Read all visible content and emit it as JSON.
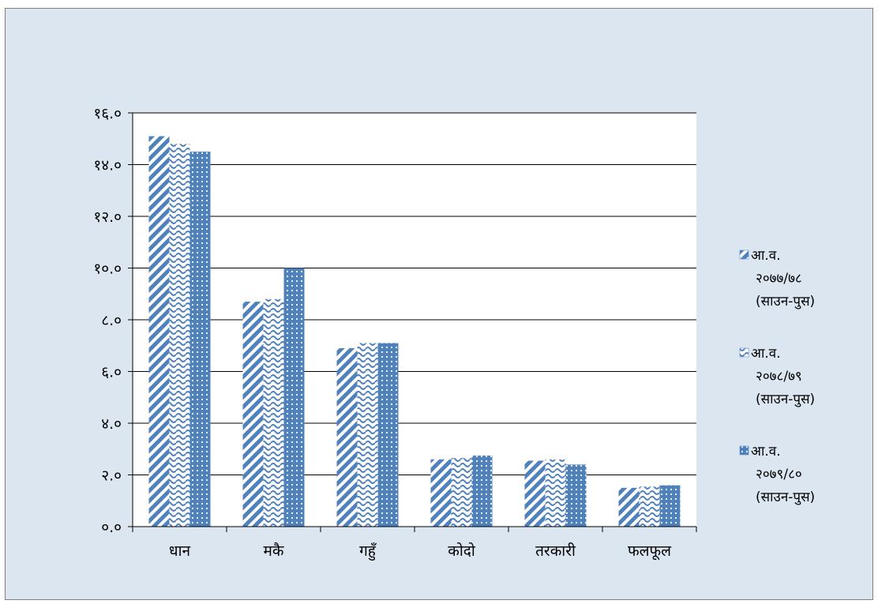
{
  "chart_data": {
    "type": "bar",
    "categories": [
      "धान",
      "मकै",
      "गहुँ",
      "कोदो",
      "तरकारी",
      "फलफूल"
    ],
    "series": [
      {
        "name": [
          "आ.व.",
          "२०७७/७८",
          "(साउन-पुस)"
        ],
        "pattern": "diagonal-stripes",
        "values": [
          15.1,
          8.7,
          6.9,
          2.6,
          2.55,
          1.5
        ]
      },
      {
        "name": [
          "आ.व.",
          "२०७८/७९",
          "(साउन-पुस)"
        ],
        "pattern": "wave",
        "values": [
          14.8,
          8.8,
          7.1,
          2.65,
          2.6,
          1.55
        ]
      },
      {
        "name": [
          "आ.व.",
          "२०७९/८०",
          "(साउन-पुस)"
        ],
        "pattern": "dots",
        "values": [
          14.5,
          10.0,
          7.1,
          2.75,
          2.4,
          1.6
        ]
      }
    ],
    "yticks": [
      "०.०",
      "२.०",
      "४.०",
      "६.०",
      "८.०",
      "१०.०",
      "१२.०",
      "१४.०",
      "१६.०"
    ],
    "ylim": [
      0,
      16
    ],
    "grid": true,
    "legend_position": "right",
    "colors": {
      "bar": "#4f81bd",
      "background": "#dce6f1",
      "plot": "#ffffff",
      "grid": "#000000"
    }
  }
}
